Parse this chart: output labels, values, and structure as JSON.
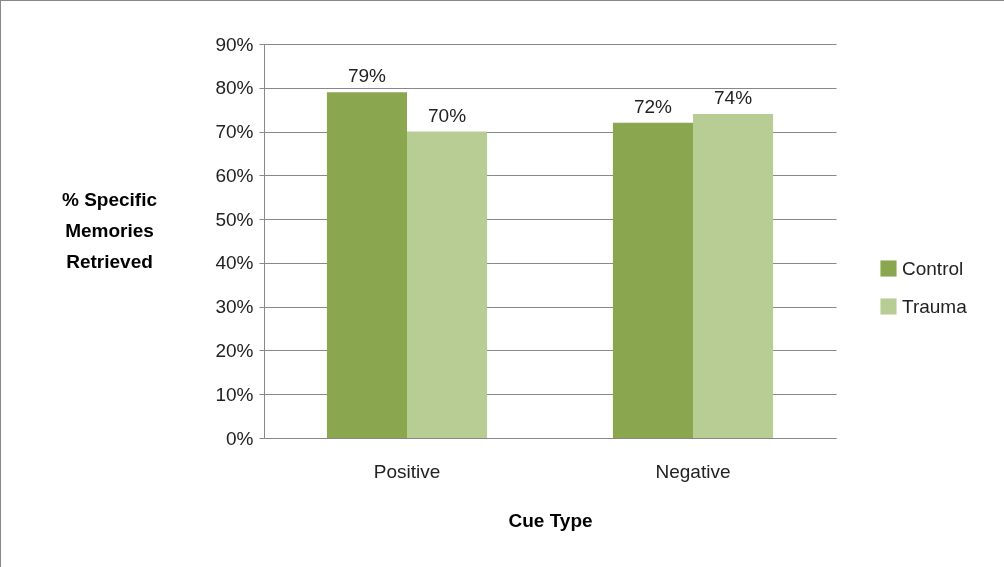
{
  "chart_data": {
    "type": "bar",
    "xlabel": "Cue Type",
    "ylabel": "% Specific Memories Retrieved",
    "categories": [
      "Positive",
      "Negative"
    ],
    "series": [
      {
        "name": "Control",
        "color": "#8aa64f",
        "values": [
          79,
          72
        ],
        "value_labels": [
          "79%",
          "72%"
        ]
      },
      {
        "name": "Trauma",
        "color": "#b8cd93",
        "values": [
          70,
          74
        ],
        "value_labels": [
          "70%",
          "74%"
        ]
      }
    ],
    "ylim": [
      0,
      90
    ],
    "yticks": [
      {
        "value": 0,
        "label": "0%"
      },
      {
        "value": 10,
        "label": "10%"
      },
      {
        "value": 20,
        "label": "20%"
      },
      {
        "value": 30,
        "label": "30%"
      },
      {
        "value": 40,
        "label": "40%"
      },
      {
        "value": 50,
        "label": "50%"
      },
      {
        "value": 60,
        "label": "60%"
      },
      {
        "value": 70,
        "label": "70%"
      },
      {
        "value": 80,
        "label": "80%"
      },
      {
        "value": 90,
        "label": "90%"
      }
    ],
    "grid": "y",
    "legend": "right"
  }
}
